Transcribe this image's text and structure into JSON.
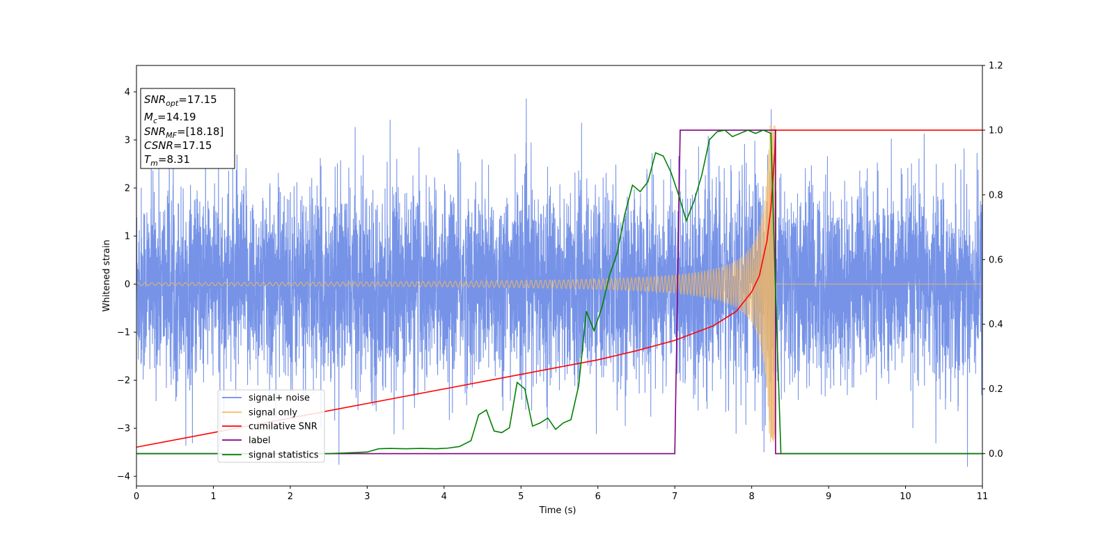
{
  "chart_data": {
    "type": "line",
    "xlabel": "Time (s)",
    "ylabel": "Whitened strain",
    "xlim": [
      0,
      11
    ],
    "ylim": [
      -4.2,
      4.55
    ],
    "y2lim": [
      -0.1,
      1.2
    ],
    "xticks": [
      "0",
      "1",
      "2",
      "3",
      "4",
      "5",
      "6",
      "7",
      "8",
      "9",
      "10",
      "11"
    ],
    "yticks": [
      "4",
      "3",
      "2",
      "1",
      "0",
      "−1",
      "−2",
      "−3",
      "−4"
    ],
    "y2ticks": [
      "1.2",
      "1.0",
      "0.8",
      "0.6",
      "0.4",
      "0.2",
      "0.0"
    ],
    "grid": false,
    "legend_position": "lower-left",
    "info_box": [
      {
        "main": "SNR",
        "sub": "opt",
        "rest": "=17.15"
      },
      {
        "main": "M",
        "sub": "c",
        "rest": "=14.19"
      },
      {
        "main": "SNR",
        "sub": "MF",
        "rest": "=[18.18]"
      },
      {
        "main": "CSNR",
        "sub": "",
        "rest": "=17.15"
      },
      {
        "main": "T",
        "sub": "m",
        "rest": "=8.31"
      }
    ],
    "series": [
      {
        "name": "signal+ noise",
        "color": "#6f8de6",
        "axis": "left",
        "description_type": "noise",
        "std": 1.05,
        "min": -3.8,
        "max": 4.2
      },
      {
        "name": "signal only",
        "color": "#f5b860",
        "axis": "left",
        "description_type": "chirp",
        "start_amplitude": 0.03,
        "start_frequency_hz": 2.8,
        "merger_time": 8.31,
        "merger_amplitude": 3.3
      },
      {
        "name": "cumilative SNR",
        "color": "#ff0000",
        "axis": "right",
        "x": [
          0,
          1,
          2,
          3,
          4,
          5,
          6,
          6.5,
          7,
          7.5,
          7.8,
          8.0,
          8.1,
          8.2,
          8.25,
          8.3,
          8.31,
          8.32,
          11
        ],
        "y": [
          0.02,
          0.065,
          0.11,
          0.155,
          0.2,
          0.245,
          0.29,
          0.318,
          0.35,
          0.395,
          0.44,
          0.5,
          0.55,
          0.66,
          0.76,
          0.93,
          1.0,
          1.0,
          1.0
        ]
      },
      {
        "name": "label",
        "color": "#800080",
        "axis": "right",
        "x": [
          0,
          7.0,
          7.07,
          8.31,
          8.31,
          11
        ],
        "y": [
          0,
          0,
          1.0,
          1.0,
          0,
          0
        ]
      },
      {
        "name": "signal statistics",
        "color": "#008000",
        "axis": "right",
        "x": [
          0,
          0.5,
          1,
          1.5,
          2,
          2.5,
          2.8,
          3.0,
          3.15,
          3.3,
          3.5,
          3.7,
          3.9,
          4.05,
          4.2,
          4.35,
          4.45,
          4.55,
          4.65,
          4.75,
          4.85,
          4.95,
          5.05,
          5.15,
          5.25,
          5.35,
          5.45,
          5.55,
          5.65,
          5.75,
          5.85,
          5.95,
          6.05,
          6.15,
          6.25,
          6.35,
          6.45,
          6.55,
          6.65,
          6.75,
          6.85,
          6.95,
          7.05,
          7.15,
          7.25,
          7.35,
          7.45,
          7.55,
          7.65,
          7.75,
          7.85,
          7.95,
          8.05,
          8.15,
          8.25,
          8.31,
          8.38,
          11
        ],
        "y": [
          0.0,
          0.0,
          0.0,
          0.0,
          0.0,
          0.0,
          0.003,
          0.005,
          0.015,
          0.016,
          0.015,
          0.016,
          0.015,
          0.017,
          0.022,
          0.04,
          0.12,
          0.135,
          0.07,
          0.065,
          0.08,
          0.22,
          0.2,
          0.085,
          0.095,
          0.11,
          0.075,
          0.095,
          0.105,
          0.21,
          0.44,
          0.38,
          0.45,
          0.55,
          0.62,
          0.74,
          0.83,
          0.81,
          0.84,
          0.93,
          0.92,
          0.87,
          0.8,
          0.72,
          0.78,
          0.86,
          0.97,
          0.995,
          1.0,
          0.98,
          0.99,
          1.0,
          0.99,
          1.0,
          0.99,
          0.5,
          0.0,
          0.0
        ]
      }
    ]
  }
}
